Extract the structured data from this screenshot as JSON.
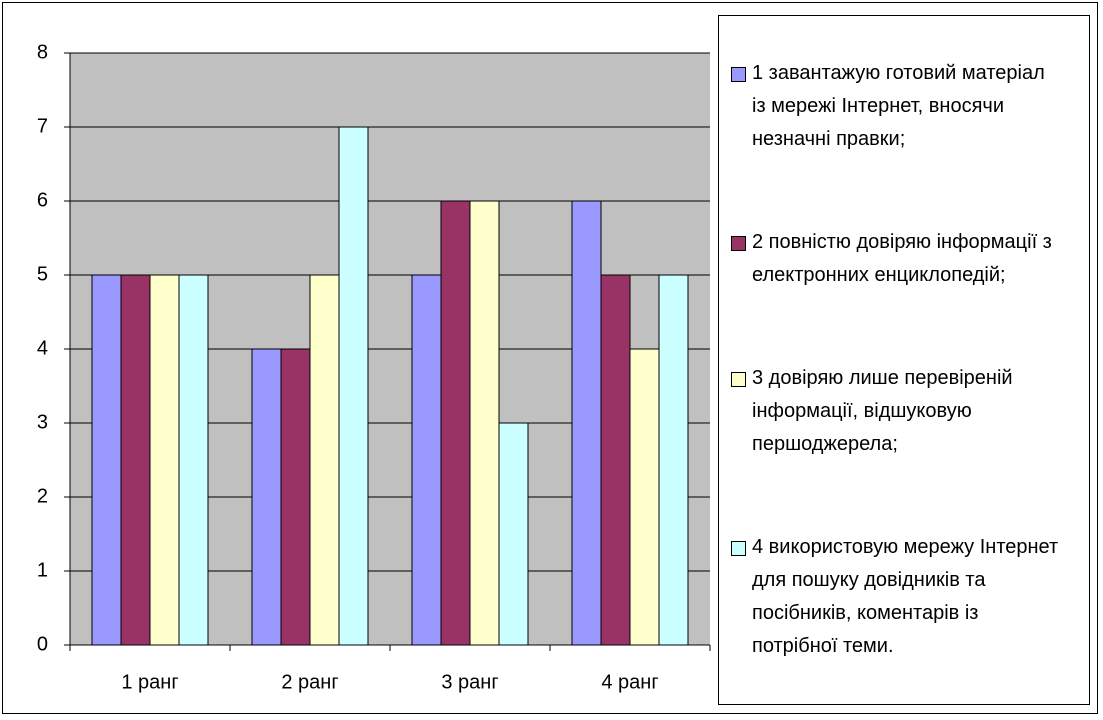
{
  "chart_data": {
    "type": "bar",
    "categories": [
      "1 ранг",
      "2 ранг",
      "3 ранг",
      "4 ранг"
    ],
    "series": [
      {
        "name": "1 завантажую готовий матеріал із мережі Інтернет, вносячи незначні правки;",
        "color": "#9999ff",
        "values": [
          5,
          4,
          5,
          6
        ]
      },
      {
        "name": "2 повністю довіряю інформації з електронних енциклопедій;",
        "color": "#993366",
        "values": [
          5,
          4,
          6,
          5
        ]
      },
      {
        "name": "3 довіряю лише перевіреній інформації, відшуковую першоджерела;",
        "color": "#ffffcc",
        "values": [
          5,
          5,
          6,
          4
        ]
      },
      {
        "name": "4 використовую мережу Інтернет для пошуку довідників та посібників, коментарів із потрібної теми.",
        "color": "#ccffff",
        "values": [
          5,
          7,
          3,
          5
        ]
      }
    ],
    "ylim": [
      0,
      8
    ],
    "yticks": [
      0,
      1,
      2,
      3,
      4,
      5,
      6,
      7,
      8
    ],
    "grid": true,
    "legend": "right"
  }
}
